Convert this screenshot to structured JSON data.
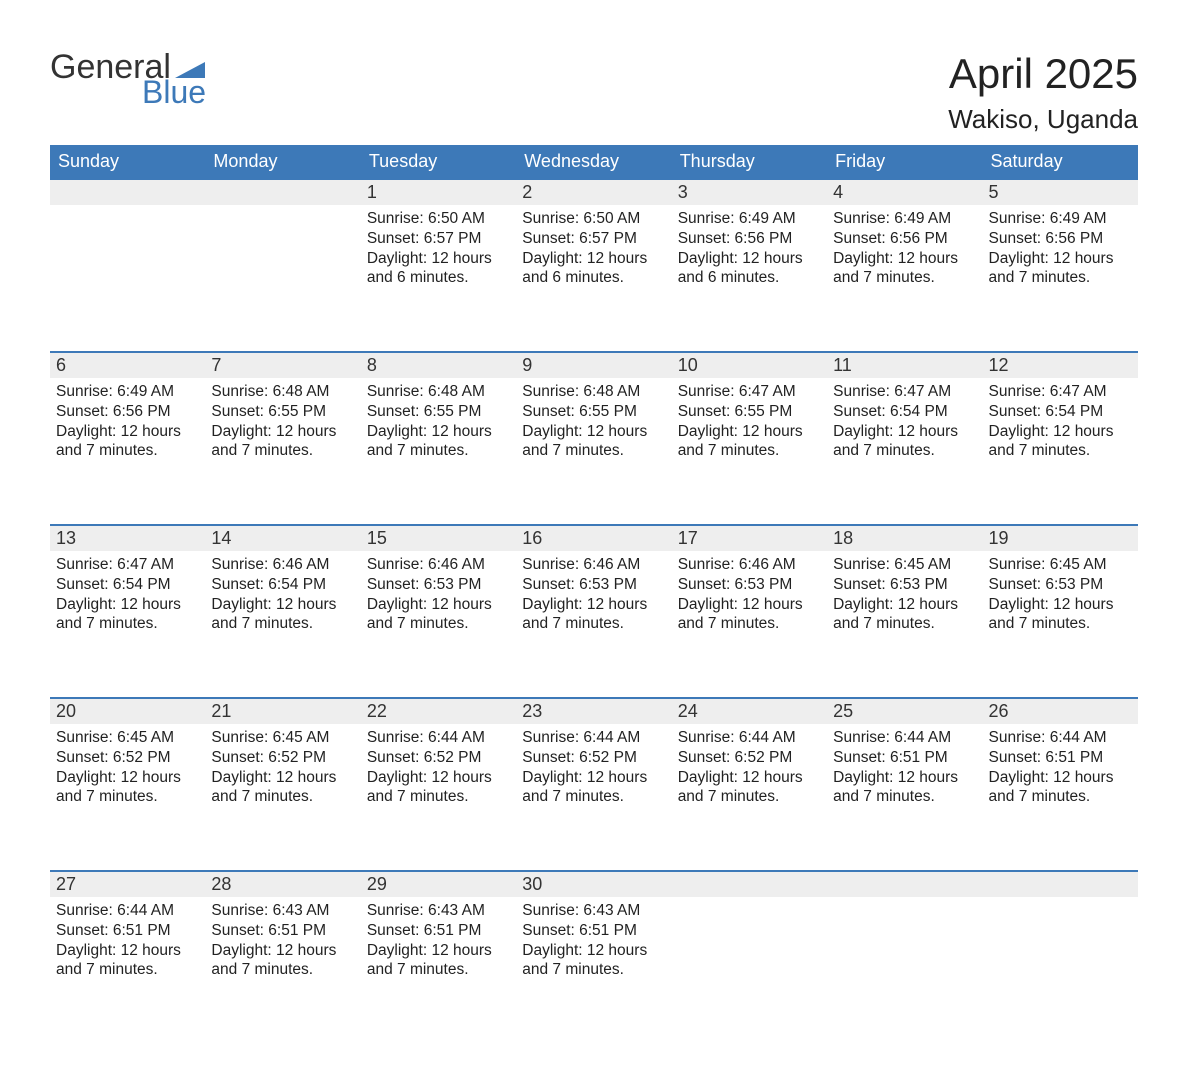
{
  "logo": {
    "text_general": "General",
    "text_blue": "Blue",
    "flag_color": "#3d79b8"
  },
  "title": "April 2025",
  "location": "Wakiso, Uganda",
  "colors": {
    "header_bg": "#3d79b8",
    "header_text": "#ffffff",
    "daynum_bg": "#eeeeee",
    "daynum_border": "#3d79b8",
    "body_text": "#222222",
    "page_bg": "#ffffff"
  },
  "fonts": {
    "family": "Arial",
    "title_size_pt": 32,
    "location_size_pt": 20,
    "dayheader_size_pt": 14,
    "body_size_pt": 12
  },
  "weekday_labels": [
    "Sunday",
    "Monday",
    "Tuesday",
    "Wednesday",
    "Thursday",
    "Friday",
    "Saturday"
  ],
  "label_sunrise": "Sunrise: ",
  "label_sunset": "Sunset: ",
  "label_daylight_prefix": "Daylight: ",
  "weeks": [
    [
      null,
      null,
      {
        "n": "1",
        "sunrise": "6:50 AM",
        "sunset": "6:57 PM",
        "daylight": "12 hours and 6 minutes."
      },
      {
        "n": "2",
        "sunrise": "6:50 AM",
        "sunset": "6:57 PM",
        "daylight": "12 hours and 6 minutes."
      },
      {
        "n": "3",
        "sunrise": "6:49 AM",
        "sunset": "6:56 PM",
        "daylight": "12 hours and 6 minutes."
      },
      {
        "n": "4",
        "sunrise": "6:49 AM",
        "sunset": "6:56 PM",
        "daylight": "12 hours and 7 minutes."
      },
      {
        "n": "5",
        "sunrise": "6:49 AM",
        "sunset": "6:56 PM",
        "daylight": "12 hours and 7 minutes."
      }
    ],
    [
      {
        "n": "6",
        "sunrise": "6:49 AM",
        "sunset": "6:56 PM",
        "daylight": "12 hours and 7 minutes."
      },
      {
        "n": "7",
        "sunrise": "6:48 AM",
        "sunset": "6:55 PM",
        "daylight": "12 hours and 7 minutes."
      },
      {
        "n": "8",
        "sunrise": "6:48 AM",
        "sunset": "6:55 PM",
        "daylight": "12 hours and 7 minutes."
      },
      {
        "n": "9",
        "sunrise": "6:48 AM",
        "sunset": "6:55 PM",
        "daylight": "12 hours and 7 minutes."
      },
      {
        "n": "10",
        "sunrise": "6:47 AM",
        "sunset": "6:55 PM",
        "daylight": "12 hours and 7 minutes."
      },
      {
        "n": "11",
        "sunrise": "6:47 AM",
        "sunset": "6:54 PM",
        "daylight": "12 hours and 7 minutes."
      },
      {
        "n": "12",
        "sunrise": "6:47 AM",
        "sunset": "6:54 PM",
        "daylight": "12 hours and 7 minutes."
      }
    ],
    [
      {
        "n": "13",
        "sunrise": "6:47 AM",
        "sunset": "6:54 PM",
        "daylight": "12 hours and 7 minutes."
      },
      {
        "n": "14",
        "sunrise": "6:46 AM",
        "sunset": "6:54 PM",
        "daylight": "12 hours and 7 minutes."
      },
      {
        "n": "15",
        "sunrise": "6:46 AM",
        "sunset": "6:53 PM",
        "daylight": "12 hours and 7 minutes."
      },
      {
        "n": "16",
        "sunrise": "6:46 AM",
        "sunset": "6:53 PM",
        "daylight": "12 hours and 7 minutes."
      },
      {
        "n": "17",
        "sunrise": "6:46 AM",
        "sunset": "6:53 PM",
        "daylight": "12 hours and 7 minutes."
      },
      {
        "n": "18",
        "sunrise": "6:45 AM",
        "sunset": "6:53 PM",
        "daylight": "12 hours and 7 minutes."
      },
      {
        "n": "19",
        "sunrise": "6:45 AM",
        "sunset": "6:53 PM",
        "daylight": "12 hours and 7 minutes."
      }
    ],
    [
      {
        "n": "20",
        "sunrise": "6:45 AM",
        "sunset": "6:52 PM",
        "daylight": "12 hours and 7 minutes."
      },
      {
        "n": "21",
        "sunrise": "6:45 AM",
        "sunset": "6:52 PM",
        "daylight": "12 hours and 7 minutes."
      },
      {
        "n": "22",
        "sunrise": "6:44 AM",
        "sunset": "6:52 PM",
        "daylight": "12 hours and 7 minutes."
      },
      {
        "n": "23",
        "sunrise": "6:44 AM",
        "sunset": "6:52 PM",
        "daylight": "12 hours and 7 minutes."
      },
      {
        "n": "24",
        "sunrise": "6:44 AM",
        "sunset": "6:52 PM",
        "daylight": "12 hours and 7 minutes."
      },
      {
        "n": "25",
        "sunrise": "6:44 AM",
        "sunset": "6:51 PM",
        "daylight": "12 hours and 7 minutes."
      },
      {
        "n": "26",
        "sunrise": "6:44 AM",
        "sunset": "6:51 PM",
        "daylight": "12 hours and 7 minutes."
      }
    ],
    [
      {
        "n": "27",
        "sunrise": "6:44 AM",
        "sunset": "6:51 PM",
        "daylight": "12 hours and 7 minutes."
      },
      {
        "n": "28",
        "sunrise": "6:43 AM",
        "sunset": "6:51 PM",
        "daylight": "12 hours and 7 minutes."
      },
      {
        "n": "29",
        "sunrise": "6:43 AM",
        "sunset": "6:51 PM",
        "daylight": "12 hours and 7 minutes."
      },
      {
        "n": "30",
        "sunrise": "6:43 AM",
        "sunset": "6:51 PM",
        "daylight": "12 hours and 7 minutes."
      },
      null,
      null,
      null
    ]
  ]
}
